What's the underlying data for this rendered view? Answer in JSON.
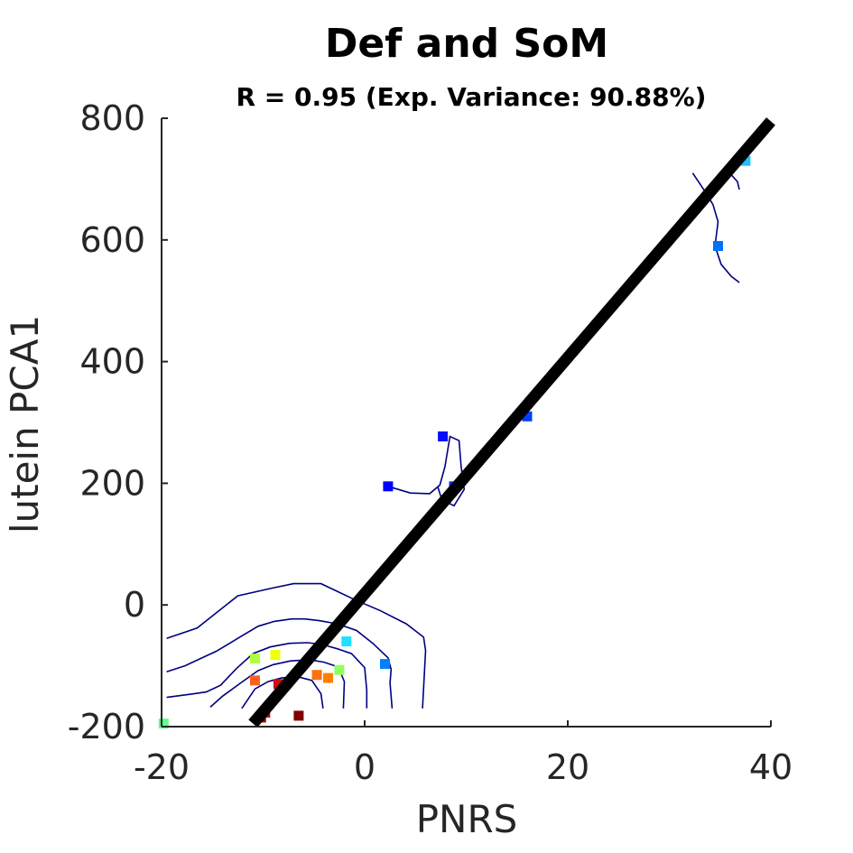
{
  "chart_data": {
    "type": "scatter",
    "title": "Def and SoM",
    "subtitle": "R = 0.95 (Exp. Variance: 90.88%)",
    "xlabel": "PNRS",
    "ylabel": "lutein PCA1",
    "xlim": [
      -20,
      40
    ],
    "ylim": [
      -200,
      800
    ],
    "xticks": [
      "-20",
      "0",
      "20",
      "40"
    ],
    "yticks": [
      "800",
      "600",
      "400",
      "200",
      "0",
      "-200"
    ],
    "grid": false,
    "line_color": "#000000",
    "contour_color": "#000080",
    "regression_line": {
      "x": [
        -11,
        40
      ],
      "y": [
        -195,
        795
      ]
    },
    "points": [
      {
        "x": -19.8,
        "y": -195,
        "color": "#60ff90"
      },
      {
        "x": -10.8,
        "y": -88,
        "color": "#b0ff40"
      },
      {
        "x": -8.8,
        "y": -82,
        "color": "#f0ff10"
      },
      {
        "x": -10.8,
        "y": -124,
        "color": "#ff6020"
      },
      {
        "x": -8.5,
        "y": -130,
        "color": "#d01010"
      },
      {
        "x": -9.8,
        "y": -177,
        "color": "#c00000"
      },
      {
        "x": -10.2,
        "y": -185,
        "color": "#a00000"
      },
      {
        "x": -6.5,
        "y": -182,
        "color": "#800000"
      },
      {
        "x": -4.7,
        "y": -115,
        "color": "#ff7010"
      },
      {
        "x": -3.6,
        "y": -120,
        "color": "#ff8000"
      },
      {
        "x": -2.5,
        "y": -107,
        "color": "#90ff60"
      },
      {
        "x": -1.8,
        "y": -60,
        "color": "#20e0ff"
      },
      {
        "x": 2.0,
        "y": -97,
        "color": "#0080ff"
      },
      {
        "x": 2.3,
        "y": 195,
        "color": "#0000ff"
      },
      {
        "x": 7.7,
        "y": 277,
        "color": "#0010ff"
      },
      {
        "x": 8.8,
        "y": 195,
        "color": "#0030ff"
      },
      {
        "x": 16.0,
        "y": 310,
        "color": "#0040ff"
      },
      {
        "x": 34.8,
        "y": 590,
        "color": "#0070ff"
      },
      {
        "x": 37.5,
        "y": 730,
        "color": "#20c0ff"
      }
    ],
    "contours": [
      {
        "x": [
          -19.5,
          -16.5,
          -12.5,
          -9.3,
          -7.0,
          -4.3,
          -0.9,
          1.5,
          4.1,
          5.8,
          6.0,
          5.7
        ],
        "y": [
          -55,
          -38,
          15,
          27,
          35,
          35,
          8,
          -9,
          -31,
          -53,
          -75,
          -170
        ]
      },
      {
        "x": [
          -19.5,
          -17.7,
          -14.6,
          -12.4,
          -10.5,
          -8.9,
          -7.2,
          -5.9,
          -4.4,
          -2.7,
          -0.8,
          0.8,
          2.3,
          2.6,
          2.5,
          2.7
        ],
        "y": [
          -110,
          -100,
          -76,
          -54,
          -35,
          -27,
          -23,
          -23,
          -26,
          -31,
          -42,
          -63,
          -87,
          -106,
          -128,
          -170
        ]
      },
      {
        "x": [
          -19.5,
          -16.8,
          -15.6,
          -14.2,
          -12.6,
          -11.0,
          -9.3,
          -7.4,
          -5.6,
          -4.2,
          -2.7,
          -1.3,
          0.0,
          0.2,
          0.2
        ],
        "y": [
          -152,
          -146,
          -143,
          -132,
          -104,
          -80,
          -69,
          -63,
          -62,
          -65,
          -72,
          -80,
          -103,
          -140,
          -170
        ]
      },
      {
        "x": [
          -15.2,
          -14.0,
          -12.2,
          -10.5,
          -9.0,
          -7.3,
          -5.4,
          -4.0,
          -2.6,
          -2.0,
          -2.1
        ],
        "y": [
          -168,
          -150,
          -128,
          -108,
          -98,
          -92,
          -90,
          -94,
          -102,
          -126,
          -170
        ]
      },
      {
        "x": [
          -12.1,
          -10.8,
          -9.5,
          -8.2,
          -6.6,
          -5.2,
          -4.3,
          -4.1
        ],
        "y": [
          -170,
          -138,
          -126,
          -120,
          -118,
          -124,
          -146,
          -170
        ]
      },
      {
        "x": [
          2.3,
          4.5,
          6.4,
          7.4,
          7.9,
          8.4,
          9.3,
          9.5,
          9.8,
          8.8,
          7.6,
          7.2
        ],
        "y": [
          195,
          184,
          183,
          197,
          227,
          277,
          270,
          227,
          190,
          163,
          173,
          194
        ]
      },
      {
        "x": [
          32.3,
          33.5,
          34.3,
          34.8,
          34.5,
          35.1,
          36.1,
          36.9
        ],
        "y": [
          710,
          680,
          658,
          630,
          590,
          560,
          540,
          530
        ]
      },
      {
        "x": [
          36.1,
          36.7,
          36.9
        ],
        "y": [
          707,
          696,
          683
        ]
      }
    ]
  }
}
